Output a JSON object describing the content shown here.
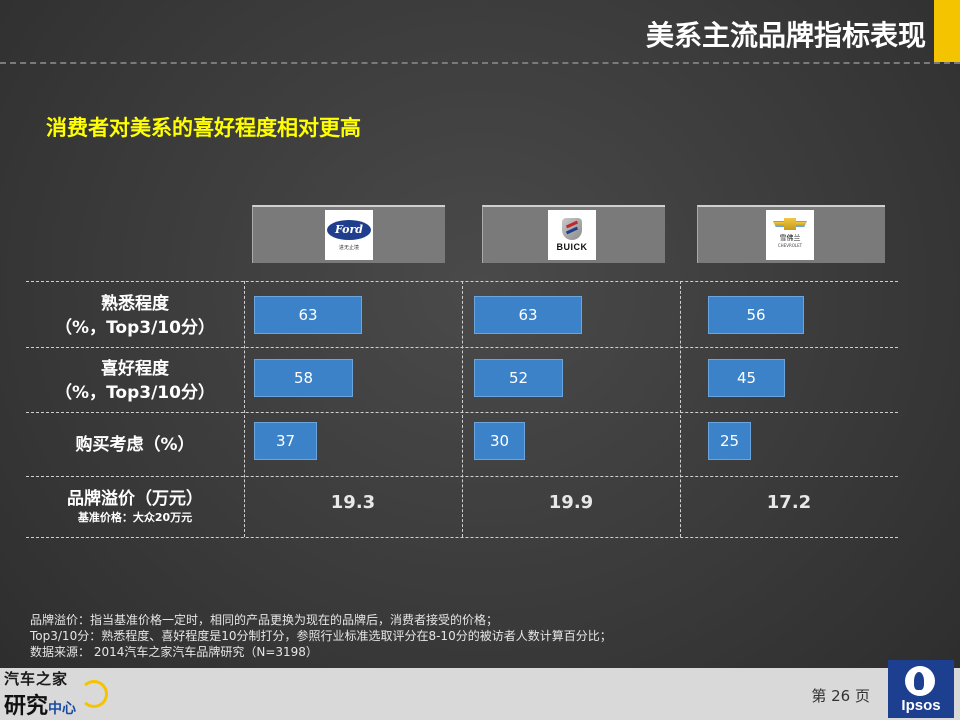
{
  "header": {
    "title": "美系主流品牌指标表现",
    "accent_color": "#f5c400"
  },
  "subtitle": "消费者对美系的喜好程度相对更高",
  "brands": [
    {
      "name": "Ford",
      "logo_text": "Ford",
      "logo_sub": "进无止境",
      "icon": "ford-logo-icon"
    },
    {
      "name": "Buick",
      "logo_text": "BUICK",
      "logo_sub": "",
      "icon": "buick-logo-icon"
    },
    {
      "name": "Chevrolet",
      "logo_text": "雪佛兰",
      "logo_sub": "CHEVROLET",
      "icon": "chevrolet-logo-icon"
    }
  ],
  "rows": {
    "familiarity": {
      "label": "熟悉程度",
      "label2": "（%，Top3/10分）"
    },
    "preference": {
      "label": "喜好程度",
      "label2": "（%，Top3/10分）"
    },
    "purchase": {
      "label": "购买考虑（%）"
    },
    "premium": {
      "label": "品牌溢价（万元）",
      "note": "基准价格：大众20万元"
    }
  },
  "chart_data": {
    "type": "bar",
    "categories": [
      "Ford",
      "Buick",
      "Chevrolet"
    ],
    "series": [
      {
        "name": "熟悉程度（%，Top3/10分）",
        "values": [
          63,
          63,
          56
        ]
      },
      {
        "name": "喜好程度（%，Top3/10分）",
        "values": [
          58,
          52,
          45
        ]
      },
      {
        "name": "购买考虑（%）",
        "values": [
          37,
          30,
          25
        ]
      }
    ],
    "premium_values": [
      "19.3",
      "19.9",
      "17.2"
    ],
    "bar_color": "#3b82c9"
  },
  "notes": [
    "品牌溢价：指当基准价格一定时，相同的产品更换为现在的品牌后，消费者接受的价格；",
    "Top3/10分：熟悉程度、喜好程度是10分制打分，参照行业标准选取评分在8-10分的被访者人数计算百分比；",
    "数据来源： 2014汽车之家汽车品牌研究（N=3198）"
  ],
  "footer": {
    "brand_line1": "汽车之家",
    "brand_line2a": "研究",
    "brand_line2b": "中心",
    "page": "第 26 页",
    "partner": "Ipsos"
  }
}
